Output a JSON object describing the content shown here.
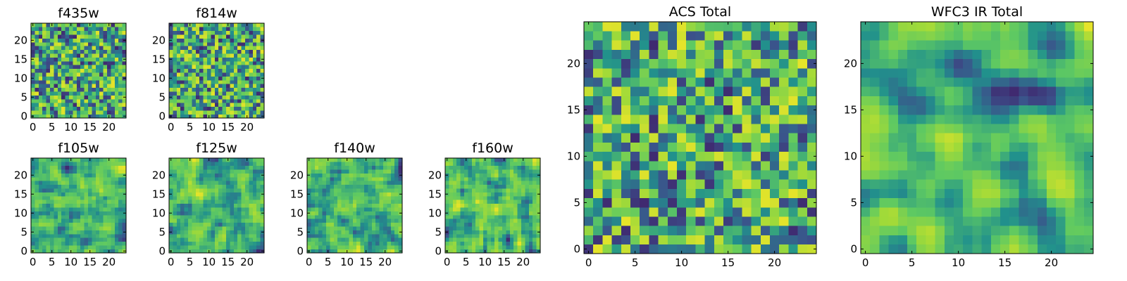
{
  "colors": {
    "viridis": [
      "#440154",
      "#3b528b",
      "#21918c",
      "#5ec962",
      "#a0da39",
      "#fde725"
    ],
    "axis": "#000000"
  },
  "chart_data": [
    {
      "id": "f435w",
      "type": "heatmap",
      "title": "f435w",
      "grid": [
        25,
        25
      ],
      "range": [
        0.1,
        0.95
      ],
      "smooth": 0,
      "seed": 11,
      "xticks": [
        "0",
        "5",
        "10",
        "15",
        "20"
      ],
      "yticks": [
        "0",
        "5",
        "10",
        "15",
        "20"
      ],
      "xlim": [
        0,
        24
      ],
      "ylim": [
        0,
        24
      ]
    },
    {
      "id": "f814w",
      "type": "heatmap",
      "title": "f814w",
      "grid": [
        25,
        25
      ],
      "range": [
        0.1,
        0.95
      ],
      "smooth": 0,
      "seed": 23,
      "xticks": [
        "0",
        "5",
        "10",
        "15",
        "20"
      ],
      "yticks": [
        "0",
        "5",
        "10",
        "15",
        "20"
      ],
      "xlim": [
        0,
        24
      ],
      "ylim": [
        0,
        24
      ]
    },
    {
      "id": "f105w",
      "type": "heatmap",
      "title": "f105w",
      "grid": [
        25,
        25
      ],
      "range": [
        0.1,
        0.95
      ],
      "smooth": 1,
      "seed": 37,
      "xticks": [
        "0",
        "5",
        "10",
        "15",
        "20"
      ],
      "yticks": [
        "0",
        "5",
        "10",
        "15",
        "20"
      ],
      "xlim": [
        0,
        24
      ],
      "ylim": [
        0,
        24
      ]
    },
    {
      "id": "f125w",
      "type": "heatmap",
      "title": "f125w",
      "grid": [
        25,
        25
      ],
      "range": [
        0.1,
        0.95
      ],
      "smooth": 1,
      "seed": 41,
      "xticks": [
        "0",
        "5",
        "10",
        "15",
        "20"
      ],
      "yticks": [
        "0",
        "5",
        "10",
        "15",
        "20"
      ],
      "xlim": [
        0,
        24
      ],
      "ylim": [
        0,
        24
      ]
    },
    {
      "id": "f140w",
      "type": "heatmap",
      "title": "f140w",
      "grid": [
        25,
        25
      ],
      "range": [
        0.1,
        0.95
      ],
      "smooth": 1,
      "seed": 53,
      "xticks": [
        "0",
        "5",
        "10",
        "15",
        "20"
      ],
      "yticks": [
        "0",
        "5",
        "10",
        "15",
        "20"
      ],
      "xlim": [
        0,
        24
      ],
      "ylim": [
        0,
        24
      ]
    },
    {
      "id": "f160w",
      "type": "heatmap",
      "title": "f160w",
      "grid": [
        25,
        25
      ],
      "range": [
        0.1,
        0.95
      ],
      "smooth": 1,
      "seed": 67,
      "xticks": [
        "0",
        "5",
        "10",
        "15",
        "20"
      ],
      "yticks": [
        "0",
        "5",
        "10",
        "15",
        "20"
      ],
      "xlim": [
        0,
        24
      ],
      "ylim": [
        0,
        24
      ]
    },
    {
      "id": "acs-total",
      "type": "heatmap",
      "title": "ACS Total",
      "grid": [
        25,
        25
      ],
      "range": [
        0.1,
        0.95
      ],
      "smooth": 0,
      "seed": 79,
      "xticks": [
        "0",
        "5",
        "10",
        "15",
        "20"
      ],
      "yticks": [
        "0",
        "5",
        "10",
        "15",
        "20"
      ],
      "xlim": [
        0,
        24
      ],
      "ylim": [
        0,
        24
      ]
    },
    {
      "id": "wfc3-ir-total",
      "type": "heatmap",
      "title": "WFC3 IR Total",
      "grid": [
        25,
        25
      ],
      "range": [
        0.1,
        0.95
      ],
      "smooth": 2,
      "seed": 97,
      "xticks": [
        "0",
        "5",
        "10",
        "15",
        "20"
      ],
      "yticks": [
        "0",
        "5",
        "10",
        "15",
        "20"
      ],
      "xlim": [
        0,
        24
      ],
      "ylim": [
        0,
        24
      ]
    }
  ]
}
